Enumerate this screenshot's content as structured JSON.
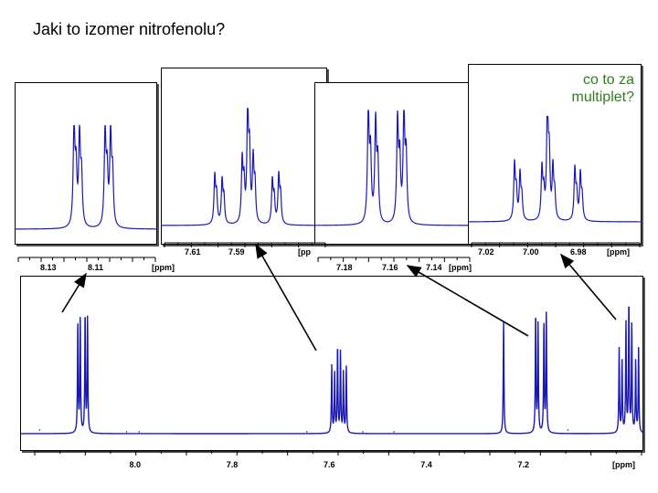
{
  "title": "Jaki to izomer nitrofenolu?",
  "question": {
    "line1": "co to za",
    "line2": "multiplet?"
  },
  "colors": {
    "spectrum": "#1a1ab0",
    "question_text": "#2e7d1e",
    "arrow": "#000000"
  },
  "chart_data": [
    {
      "type": "line",
      "name": "full-spectrum",
      "x_unit": "[ppm]",
      "xlim": [
        8.11,
        7.98
      ],
      "x_ticks": [
        "8.0",
        "7.8",
        "7.6",
        "7.4",
        "7.2"
      ],
      "x_tick_values": [
        8.0,
        7.8,
        7.6,
        7.4,
        7.2
      ],
      "x_range": [
        8.24,
        6.96
      ],
      "peaks": [
        {
          "center": 8.12,
          "group": "doublet"
        },
        {
          "center": 7.585,
          "group": "multiplet"
        },
        {
          "center": 7.245,
          "group": "singlet"
        },
        {
          "center": 7.17,
          "group": "doublet"
        },
        {
          "center": 6.99,
          "group": "multiplet"
        }
      ]
    },
    {
      "type": "line",
      "name": "zoom-1",
      "x_unit": "[ppm]",
      "x_ticks": [
        "8.13",
        "8.11"
      ],
      "shape": "doublet-of-doublets"
    },
    {
      "type": "line",
      "name": "zoom-2",
      "x_unit": "[ppm]",
      "x_ticks": [
        "7.61",
        "7.59"
      ],
      "shape": "ddd"
    },
    {
      "type": "line",
      "name": "zoom-3",
      "x_unit": "[ppm]",
      "x_ticks": [
        "7.18",
        "7.16",
        "7.14"
      ],
      "shape": "doublet-of-doublets"
    },
    {
      "type": "line",
      "name": "zoom-4",
      "x_unit": "[ppm]",
      "x_ticks": [
        "7.02",
        "7.00",
        "6.98"
      ],
      "shape": "ddd"
    }
  ],
  "labels": {
    "z1_unit": "[ppm]",
    "z2_unit": "[pp",
    "z3_unit": "[ppm]",
    "z4_unit": "[ppm]",
    "main_unit": "[ppm]"
  }
}
